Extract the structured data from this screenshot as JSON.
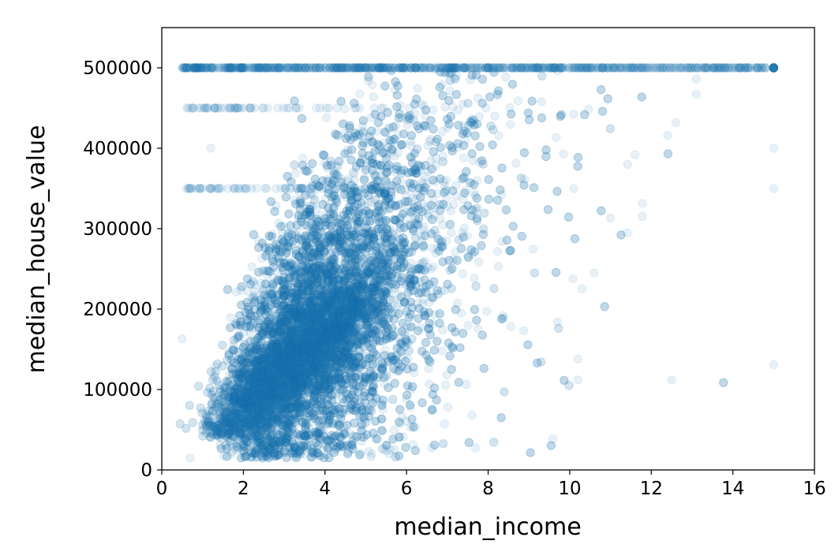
{
  "chart_data": {
    "type": "scatter",
    "xlabel": "median_income",
    "ylabel": "median_house_value",
    "xlim": [
      0,
      16
    ],
    "ylim": [
      0,
      550000
    ],
    "xticks": [
      0,
      2,
      4,
      6,
      8,
      10,
      12,
      14,
      16
    ],
    "yticks": [
      0,
      100000,
      200000,
      300000,
      400000,
      500000
    ],
    "grid": false,
    "legend": "none",
    "point_color": "#1f77b4",
    "point_alpha": 0.1,
    "distribution": {
      "cap_value": 500001,
      "secondary_bands": [
        450000,
        350000
      ],
      "top_income_value": 15.0001,
      "notes_visible": false
    },
    "points": [
      [
        0.5,
        500001
      ],
      [
        1.2,
        500001
      ],
      [
        2.0,
        500001
      ],
      [
        2.6,
        500001
      ],
      [
        3.1,
        500001
      ],
      [
        3.5,
        500001
      ],
      [
        4.0,
        500001
      ],
      [
        4.4,
        500001
      ],
      [
        5.0,
        500001
      ],
      [
        5.6,
        500001
      ],
      [
        6.2,
        500001
      ],
      [
        6.8,
        500001
      ],
      [
        7.4,
        500001
      ],
      [
        8.0,
        500001
      ],
      [
        8.6,
        500001
      ],
      [
        9.2,
        500001
      ],
      [
        9.8,
        500001
      ],
      [
        10.2,
        500001
      ],
      [
        10.8,
        500001
      ],
      [
        11.4,
        500001
      ],
      [
        12.2,
        500001
      ],
      [
        12.9,
        500001
      ],
      [
        13.5,
        500001
      ],
      [
        14.2,
        500001
      ],
      [
        14.6,
        500001
      ],
      [
        15.0,
        500001
      ],
      [
        15.0,
        400000
      ],
      [
        15.0,
        350000
      ],
      [
        15.0,
        131000
      ],
      [
        12.5,
        112000
      ],
      [
        11.6,
        392000
      ],
      [
        12.4,
        416000
      ],
      [
        12.6,
        432000
      ],
      [
        13.1,
        467000
      ],
      [
        13.1,
        486000
      ],
      [
        11.0,
        313000
      ],
      [
        10.2,
        112000
      ],
      [
        10.2,
        138000
      ],
      [
        10.3,
        225000
      ],
      [
        10.1,
        350000
      ],
      [
        9.7,
        184000
      ],
      [
        10.6,
        245000
      ],
      [
        0.5,
        163000
      ],
      [
        0.6,
        350000
      ],
      [
        0.7,
        15000
      ],
      [
        1.0,
        350000
      ],
      [
        1.4,
        350000
      ],
      [
        1.7,
        450000
      ],
      [
        1.8,
        350000
      ],
      [
        2.2,
        350000
      ],
      [
        2.5,
        450000
      ],
      [
        0.9,
        450000
      ],
      [
        1.2,
        400000
      ],
      [
        7.6,
        68000
      ],
      [
        5.4,
        48000
      ],
      [
        6.1,
        78000
      ],
      [
        6.0,
        88000
      ]
    ]
  }
}
